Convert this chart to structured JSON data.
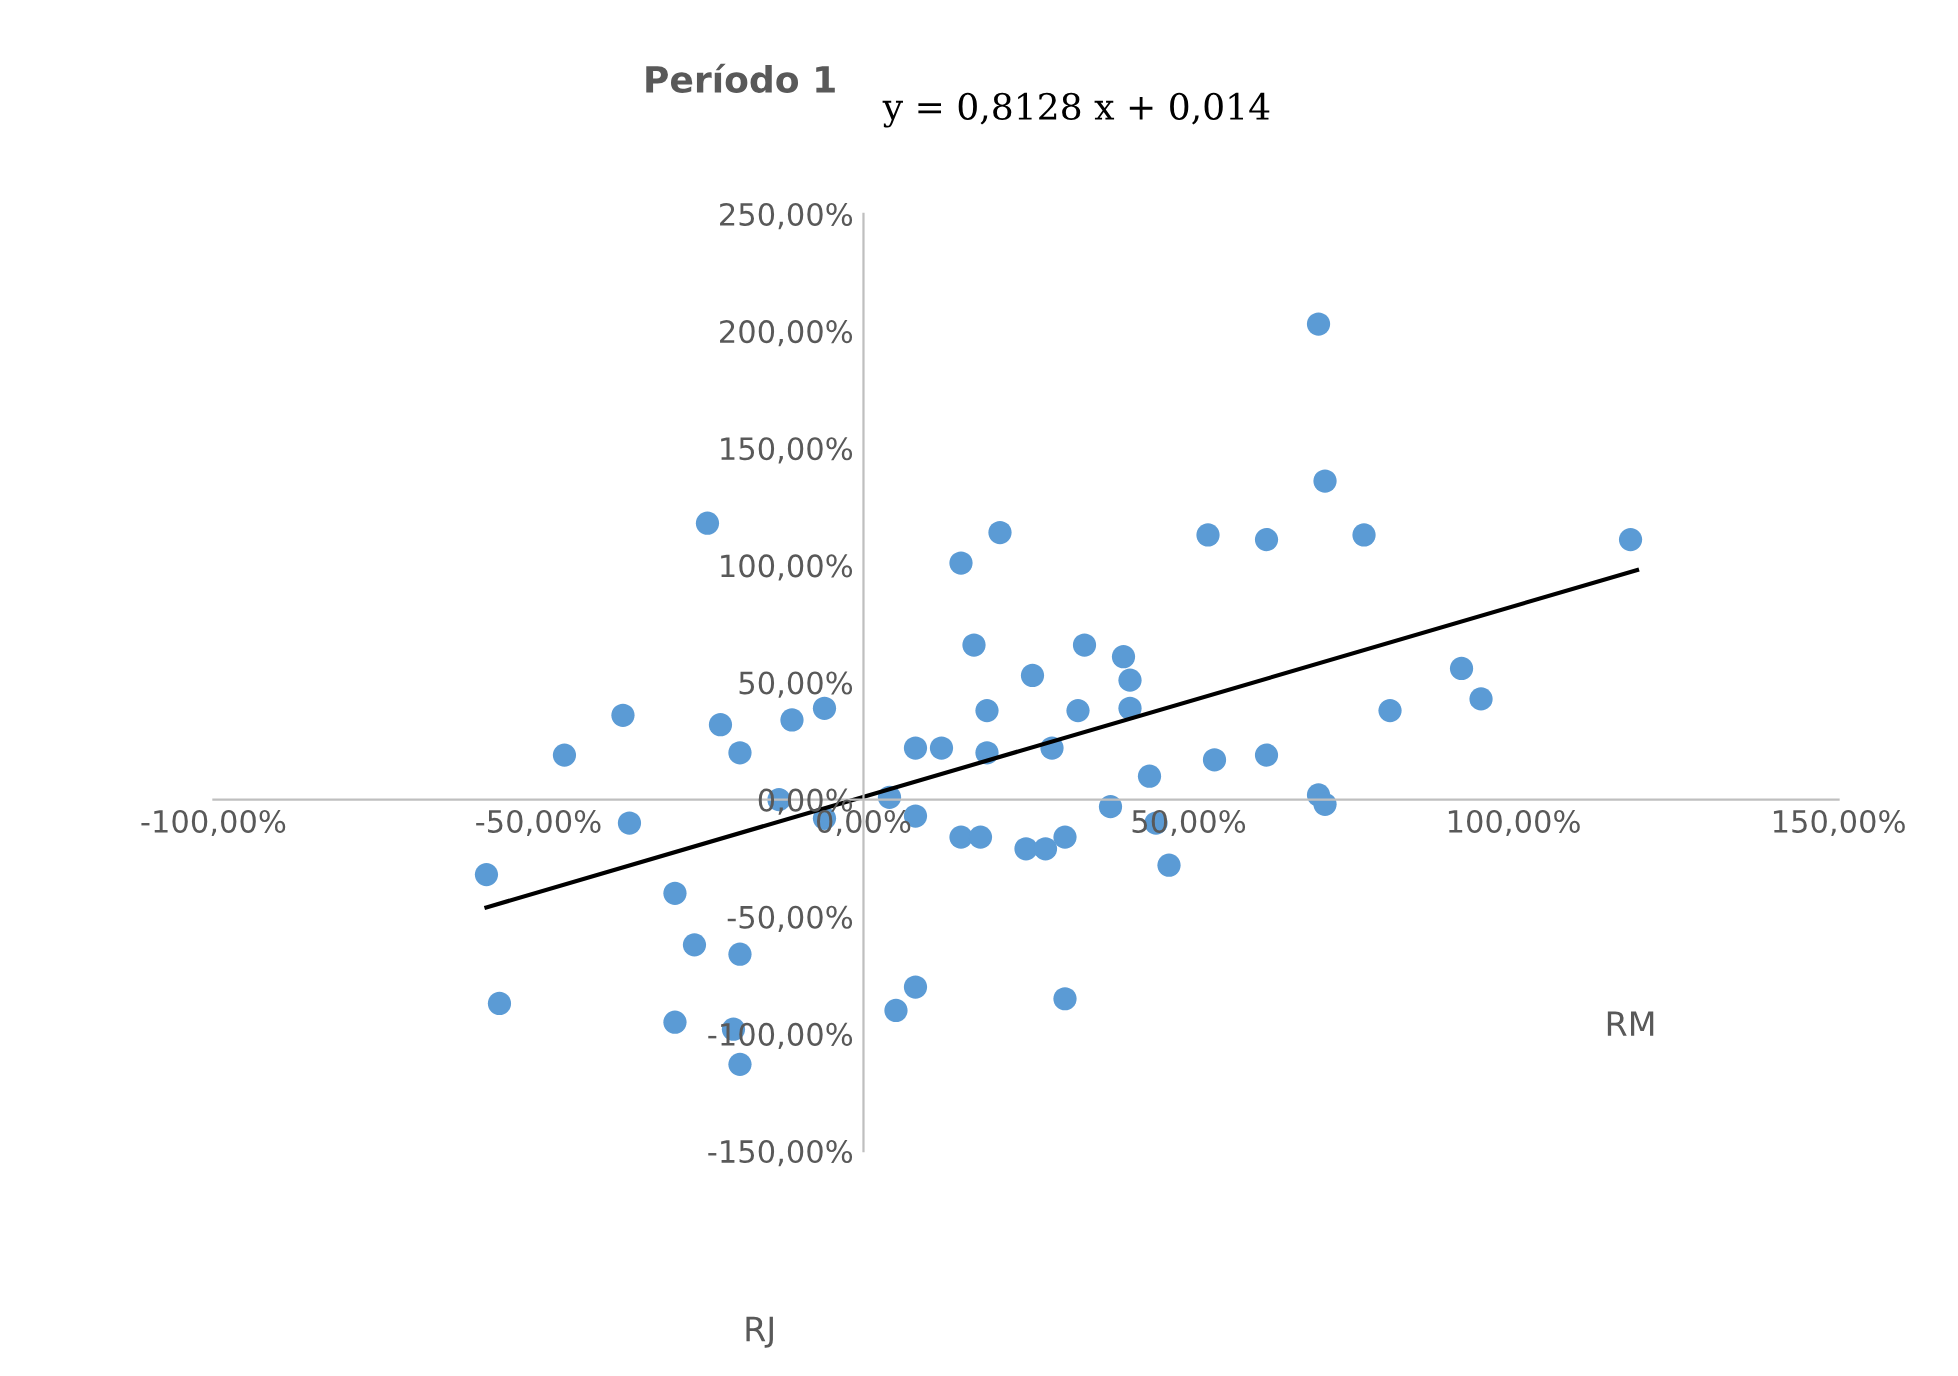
{
  "chart_data": {
    "type": "scatter",
    "title": "Período 1",
    "xlabel": "RM",
    "annotations": [
      "y = 0,8128 x + 0,014",
      "RJ"
    ],
    "series": [
      {
        "color": "#5b9bd5",
        "marker": "circle",
        "x": [
          -58,
          -56,
          -46,
          -37,
          -36,
          -29,
          -26,
          -29,
          -24,
          -22,
          -19,
          -19,
          -20,
          -19,
          -13,
          -11,
          -6,
          -6,
          21,
          15,
          53,
          62,
          77,
          71,
          70,
          118,
          17,
          34,
          40,
          41,
          41,
          26,
          19,
          33,
          8,
          12,
          19,
          29,
          44,
          54,
          62,
          92,
          95,
          81,
          70,
          71,
          4,
          8,
          15,
          18,
          25,
          28,
          31,
          38,
          45,
          47,
          8,
          5,
          31
        ],
        "values": [
          -32,
          -87,
          19,
          36,
          -10,
          -40,
          -62,
          -95,
          118,
          32,
          20,
          -66,
          -98,
          -113,
          0,
          34,
          39,
          -8,
          114,
          101,
          113,
          111,
          113,
          136,
          203,
          111,
          66,
          66,
          61,
          51,
          39,
          53,
          38,
          38,
          22,
          22,
          20,
          22,
          10,
          17,
          19,
          56,
          43,
          38,
          2,
          -2,
          1,
          -7,
          -16,
          -16,
          -21,
          -21,
          -16,
          -3,
          -10,
          -28,
          -80,
          -90,
          -85
        ]
      },
      {
        "type": "line",
        "color": "#000000",
        "marker": "none",
        "x": [
          -58,
          119
        ],
        "values": [
          -46,
          98
        ]
      }
    ],
    "grid": false,
    "xlim": [
      -100,
      150
    ],
    "ylim": [
      -150,
      250
    ],
    "xticks": [
      {
        "value": -100,
        "label": "-100,00%"
      },
      {
        "value": -50,
        "label": "-50,00%"
      },
      {
        "value": 0,
        "label": "0,00%"
      },
      {
        "value": 50,
        "label": "50,00%"
      },
      {
        "value": 100,
        "label": "100,00%"
      },
      {
        "value": 150,
        "label": "150,00%"
      }
    ],
    "yticks": [
      {
        "value": -150,
        "label": "-150,00%"
      },
      {
        "value": -100,
        "label": "-100,00%"
      },
      {
        "value": -50,
        "label": "-50,00%"
      },
      {
        "value": 0,
        "label": "0,00%"
      },
      {
        "value": 50,
        "label": "50,00%"
      },
      {
        "value": 100,
        "label": "100,00%"
      },
      {
        "value": 150,
        "label": "150,00%"
      },
      {
        "value": 200,
        "label": "200,00%"
      },
      {
        "value": 250,
        "label": "250,00%"
      }
    ]
  }
}
